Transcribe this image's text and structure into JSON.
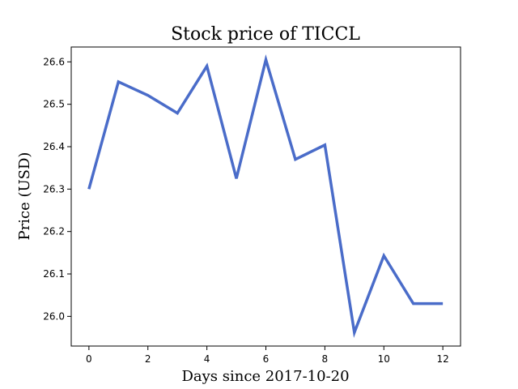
{
  "chart_data": {
    "type": "line",
    "title": "Stock price of TICCL",
    "xlabel": "Days since 2017-10-20",
    "ylabel": "Price (USD)",
    "xlim": [
      -0.6,
      12.6
    ],
    "ylim": [
      25.93,
      26.635
    ],
    "xticks": [
      0,
      2,
      4,
      6,
      8,
      10,
      12
    ],
    "xtick_labels": [
      "0",
      "2",
      "4",
      "6",
      "8",
      "10",
      "12"
    ],
    "yticks": [
      26.0,
      26.1,
      26.2,
      26.3,
      26.4,
      26.5,
      26.6
    ],
    "ytick_labels": [
      "26.0",
      "26.1",
      "26.2",
      "26.3",
      "26.4",
      "26.5",
      "26.6"
    ],
    "grid": false,
    "series": [
      {
        "color": "#4a6cc9",
        "x": [
          0,
          1,
          2,
          3,
          4,
          5,
          6,
          7,
          8,
          9,
          10,
          11,
          12
        ],
        "y": [
          26.3,
          26.553,
          26.521,
          26.479,
          26.59,
          26.325,
          26.605,
          26.37,
          26.404,
          25.962,
          26.143,
          26.03,
          26.03
        ]
      }
    ]
  }
}
